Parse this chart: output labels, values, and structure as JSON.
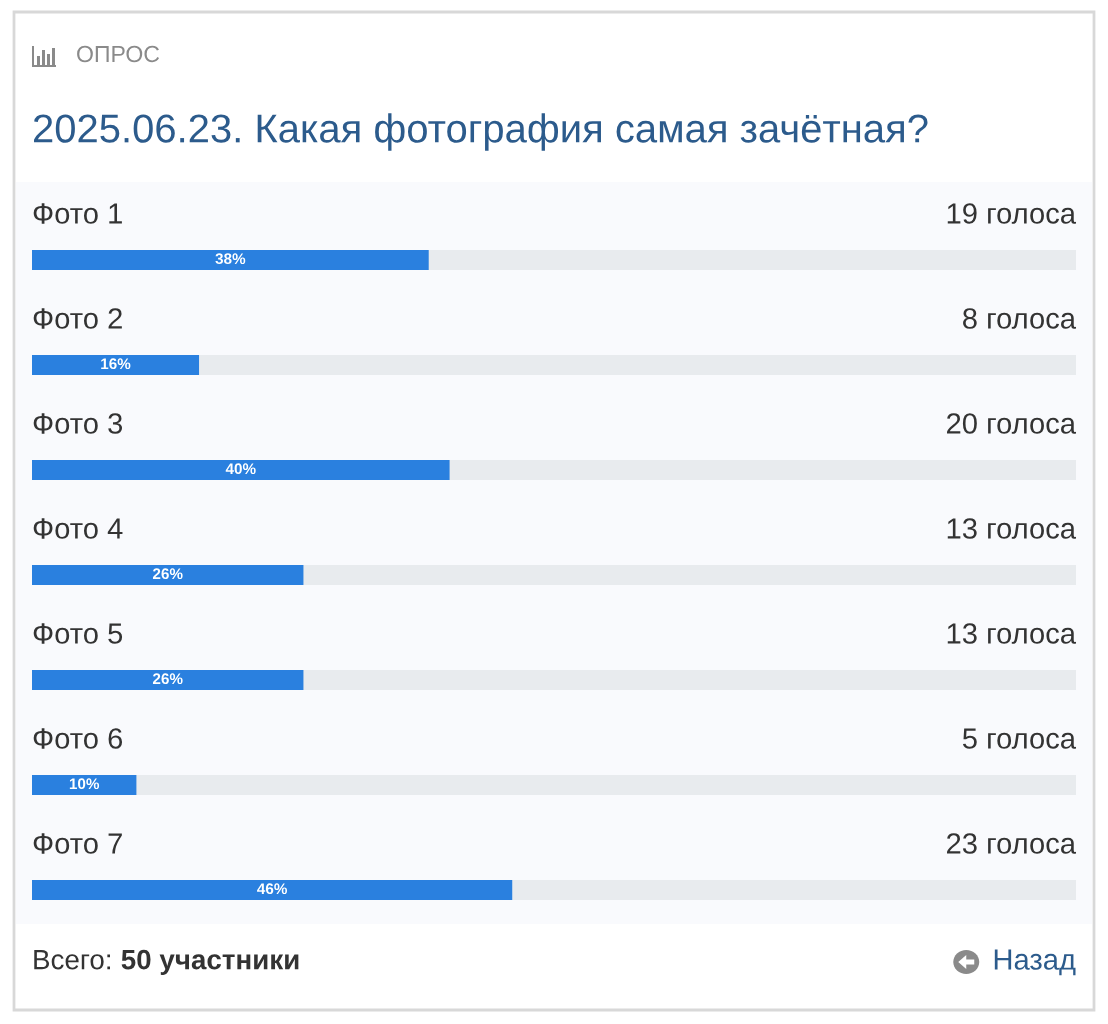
{
  "chart_data": {
    "type": "bar",
    "orientation": "horizontal",
    "subtitle": "ОПРОС",
    "title": "2025.06.23. Какая фотография самая зачётная?",
    "categories": [
      "Фото 1",
      "Фото 2",
      "Фото 3",
      "Фото 4",
      "Фото 5",
      "Фото 6",
      "Фото 7"
    ],
    "values": [
      38,
      16,
      40,
      26,
      26,
      10,
      46
    ],
    "value_labels": [
      "38%",
      "16%",
      "40%",
      "26%",
      "26%",
      "10%",
      "46%"
    ],
    "color": "#2a80df",
    "xlim": [
      0,
      100
    ],
    "tick_labels": "y",
    "annotations": [
      "19 голоса",
      "8 голоса",
      "20 голоса",
      "13 голоса",
      "13 голоса",
      "5 голоса",
      "23 голоса",
      "Всего:",
      "50 участники",
      "Назад"
    ]
  }
}
